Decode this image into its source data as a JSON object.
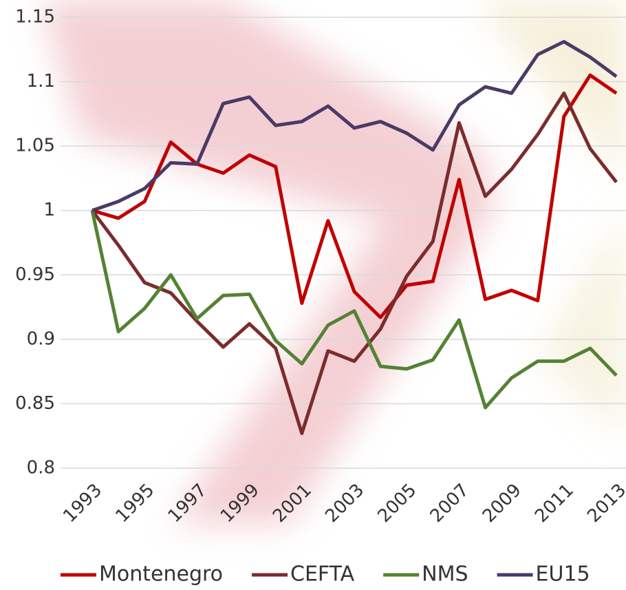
{
  "chart_data": {
    "type": "line",
    "x": [
      1993,
      1994,
      1995,
      1996,
      1997,
      1998,
      1999,
      2000,
      2001,
      2002,
      2003,
      2004,
      2005,
      2006,
      2007,
      2008,
      2009,
      2010,
      2011,
      2012,
      2013
    ],
    "xlim": [
      1993,
      2013
    ],
    "xticks": [
      1993,
      1995,
      1997,
      1999,
      2001,
      2003,
      2005,
      2007,
      2009,
      2011,
      2013
    ],
    "ylim": [
      0.8,
      1.15
    ],
    "yticks": [
      0.8,
      0.85,
      0.9,
      0.95,
      1,
      1.05,
      1.1,
      1.15
    ],
    "grid": true,
    "legend": "bottom",
    "series": [
      {
        "name": "Montenegro",
        "color": "#c00000",
        "values": [
          1.0,
          0.994,
          1.007,
          1.053,
          1.036,
          1.029,
          1.043,
          1.034,
          0.928,
          0.992,
          0.937,
          0.917,
          0.942,
          0.945,
          1.024,
          0.931,
          0.938,
          0.93,
          1.073,
          1.105,
          1.091
        ]
      },
      {
        "name": "CEFTA",
        "color": "#7b2c2c",
        "values": [
          1.0,
          0.973,
          0.944,
          0.936,
          0.914,
          0.894,
          0.912,
          0.893,
          0.827,
          0.891,
          0.883,
          0.908,
          0.949,
          0.976,
          1.068,
          1.011,
          1.032,
          1.059,
          1.091,
          1.048,
          1.022
        ]
      },
      {
        "name": "NMS",
        "color": "#548235",
        "values": [
          1.0,
          0.906,
          0.924,
          0.95,
          0.916,
          0.934,
          0.935,
          0.899,
          0.881,
          0.911,
          0.922,
          0.879,
          0.877,
          0.884,
          0.915,
          0.847,
          0.87,
          0.883,
          0.883,
          0.893,
          0.872
        ]
      },
      {
        "name": "EU15",
        "color": "#4b3a66",
        "values": [
          1.0,
          1.007,
          1.017,
          1.037,
          1.036,
          1.083,
          1.088,
          1.066,
          1.069,
          1.081,
          1.064,
          1.069,
          1.06,
          1.047,
          1.082,
          1.096,
          1.091,
          1.121,
          1.131,
          1.119,
          1.104
        ]
      }
    ]
  }
}
